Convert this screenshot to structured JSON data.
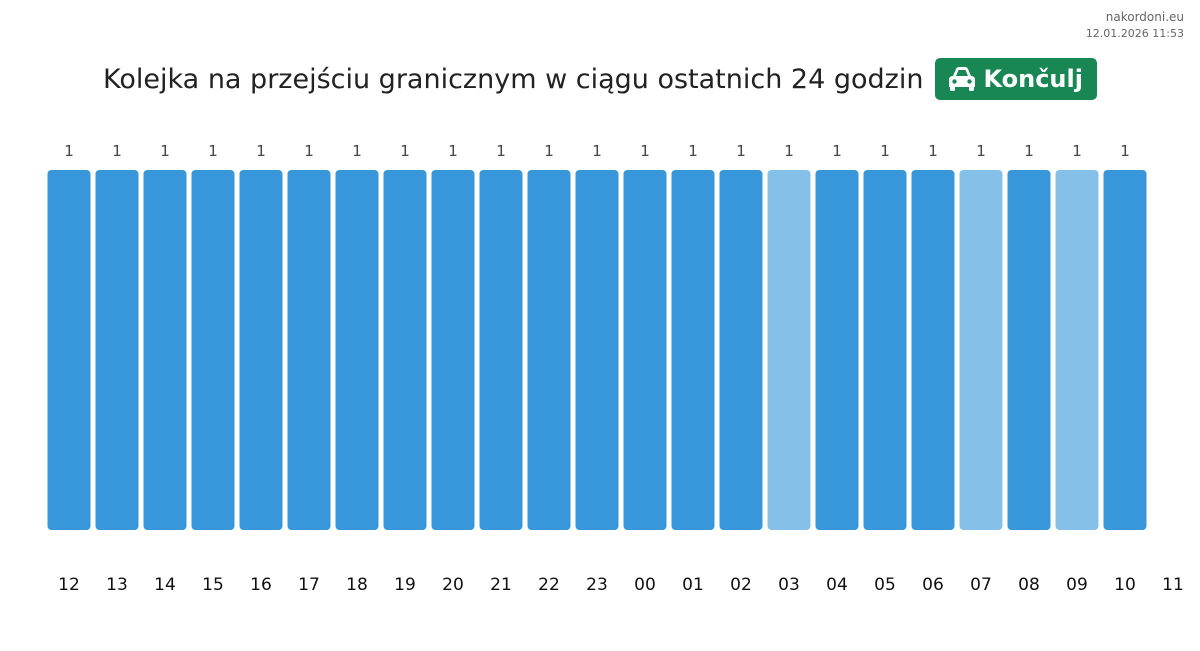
{
  "header": {
    "site_name": "nakordoni.eu",
    "timestamp": "12.01.2026 11:53",
    "title": "Kolejka na przejściu granicznym w ciągu ostatnich 24 godzin",
    "crossing_name": "Končulj",
    "crossing_icon": "car-icon",
    "badge_color": "#198754"
  },
  "chart_data": {
    "type": "bar",
    "categories": [
      "12",
      "13",
      "14",
      "15",
      "16",
      "17",
      "18",
      "19",
      "20",
      "21",
      "22",
      "23",
      "00",
      "01",
      "02",
      "03",
      "04",
      "05",
      "06",
      "07",
      "08",
      "09",
      "10"
    ],
    "values": [
      1,
      1,
      1,
      1,
      1,
      1,
      1,
      1,
      1,
      1,
      1,
      1,
      1,
      1,
      1,
      1,
      1,
      1,
      1,
      1,
      1,
      1,
      1
    ],
    "highlighted": [
      false,
      false,
      false,
      false,
      false,
      false,
      false,
      false,
      false,
      false,
      false,
      false,
      false,
      false,
      false,
      true,
      false,
      false,
      false,
      true,
      false,
      true,
      false
    ],
    "x_ticks": [
      "12",
      "13",
      "14",
      "15",
      "16",
      "17",
      "18",
      "19",
      "20",
      "21",
      "22",
      "23",
      "00",
      "01",
      "02",
      "03",
      "04",
      "05",
      "06",
      "07",
      "08",
      "09",
      "10",
      "11"
    ],
    "ylim": [
      0,
      1
    ],
    "colors": {
      "bar": "#3897db",
      "bar_light": "#85c0e8"
    },
    "grid": false,
    "legend": "none"
  }
}
